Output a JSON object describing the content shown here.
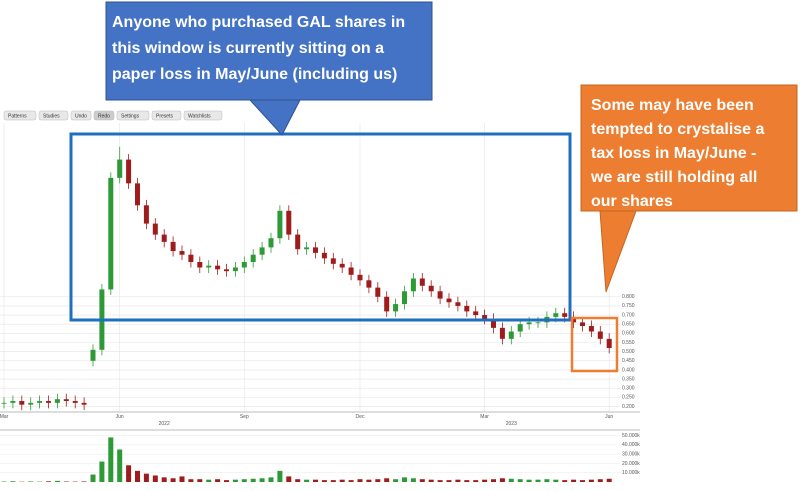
{
  "chart_data": {
    "type": "candlestick",
    "toolbar": [
      "Patterns",
      "Studies",
      "Undo",
      "Redo",
      "Settings",
      "Presets",
      "Watchlists"
    ],
    "annotations": [
      {
        "lines": [
          "Anyone who purchased GAL shares in",
          "this window is currently sitting on a",
          "paper loss in May/June (including us)"
        ],
        "color": "#4472c4"
      },
      {
        "lines": [
          "Some may have been",
          "tempted to crystalise a",
          "tax loss in May/June -",
          "we are still holding  all",
          "our shares"
        ],
        "color": "#ed7d31"
      }
    ],
    "categories": [
      "Mar",
      null,
      null,
      null,
      null,
      null,
      null,
      null,
      null,
      null,
      null,
      null,
      null,
      "Jun",
      null,
      null,
      null,
      null,
      null,
      null,
      null,
      null,
      null,
      null,
      null,
      null,
      null,
      "Sep",
      null,
      null,
      null,
      null,
      null,
      null,
      null,
      null,
      null,
      null,
      null,
      null,
      "Dec",
      null,
      null,
      null,
      null,
      null,
      null,
      null,
      null,
      null,
      null,
      null,
      null,
      null,
      "Mar",
      null,
      null,
      null,
      null,
      null,
      null,
      null,
      null,
      null,
      null,
      null,
      null,
      null,
      "Jun"
    ],
    "year_categories": [
      null,
      null,
      null,
      null,
      null,
      null,
      null,
      null,
      null,
      null,
      null,
      null,
      null,
      null,
      null,
      null,
      null,
      null,
      "2022",
      null,
      null,
      null,
      null,
      null,
      null,
      null,
      null,
      null,
      null,
      null,
      null,
      null,
      null,
      null,
      null,
      null,
      null,
      null,
      null,
      null,
      null,
      null,
      null,
      null,
      null,
      null,
      null,
      null,
      null,
      null,
      null,
      null,
      null,
      null,
      null,
      null,
      null,
      "2023",
      null,
      null,
      null,
      null,
      null,
      null,
      null,
      null,
      null,
      null,
      null
    ],
    "open": [
      0.22,
      0.22,
      0.23,
      0.21,
      0.22,
      0.23,
      0.22,
      0.24,
      0.23,
      0.22,
      0.45,
      0.51,
      0.84,
      1.45,
      1.55,
      1.42,
      1.3,
      1.2,
      1.14,
      1.1,
      1.05,
      1.03,
      0.99,
      0.96,
      0.97,
      0.95,
      0.94,
      0.96,
      0.99,
      1.03,
      1.07,
      1.12,
      1.27,
      1.14,
      1.06,
      1.07,
      1.04,
      1.01,
      0.98,
      0.96,
      0.92,
      0.89,
      0.85,
      0.8,
      0.72,
      0.76,
      0.83,
      0.9,
      0.86,
      0.83,
      0.79,
      0.77,
      0.75,
      0.72,
      0.7,
      0.68,
      0.63,
      0.57,
      0.61,
      0.65,
      0.66,
      0.66,
      0.69,
      0.71,
      0.69,
      0.66,
      0.64,
      0.61,
      0.57
    ],
    "high": [
      0.25,
      0.26,
      0.26,
      0.25,
      0.26,
      0.26,
      0.27,
      0.27,
      0.26,
      0.25,
      0.54,
      0.87,
      1.48,
      1.62,
      1.58,
      1.45,
      1.33,
      1.23,
      1.17,
      1.13,
      1.08,
      1.06,
      1.02,
      1.0,
      1.0,
      0.98,
      0.99,
      1.02,
      1.06,
      1.1,
      1.15,
      1.3,
      1.3,
      1.17,
      1.1,
      1.1,
      1.07,
      1.04,
      1.01,
      0.99,
      0.95,
      0.92,
      0.88,
      0.83,
      0.79,
      0.86,
      0.93,
      0.93,
      0.89,
      0.86,
      0.82,
      0.8,
      0.78,
      0.75,
      0.73,
      0.71,
      0.66,
      0.64,
      0.68,
      0.69,
      0.69,
      0.72,
      0.74,
      0.74,
      0.72,
      0.69,
      0.67,
      0.64,
      0.6
    ],
    "low": [
      0.19,
      0.19,
      0.18,
      0.18,
      0.19,
      0.19,
      0.19,
      0.2,
      0.19,
      0.18,
      0.42,
      0.48,
      0.81,
      1.42,
      1.39,
      1.27,
      1.17,
      1.11,
      1.07,
      1.02,
      1.0,
      0.96,
      0.93,
      0.93,
      0.92,
      0.91,
      0.91,
      0.93,
      0.96,
      1.0,
      1.04,
      1.09,
      1.11,
      1.03,
      1.03,
      1.01,
      0.98,
      0.95,
      0.93,
      0.89,
      0.86,
      0.82,
      0.77,
      0.69,
      0.69,
      0.73,
      0.8,
      0.83,
      0.8,
      0.76,
      0.74,
      0.72,
      0.69,
      0.67,
      0.65,
      0.6,
      0.54,
      0.54,
      0.58,
      0.62,
      0.63,
      0.63,
      0.66,
      0.66,
      0.63,
      0.61,
      0.58,
      0.54,
      0.49
    ],
    "close": [
      0.22,
      0.23,
      0.21,
      0.22,
      0.23,
      0.22,
      0.24,
      0.23,
      0.22,
      0.21,
      0.51,
      0.84,
      1.45,
      1.55,
      1.42,
      1.3,
      1.2,
      1.14,
      1.1,
      1.05,
      1.03,
      0.99,
      0.96,
      0.97,
      0.95,
      0.94,
      0.96,
      0.99,
      1.03,
      1.07,
      1.12,
      1.27,
      1.14,
      1.06,
      1.07,
      1.04,
      1.01,
      0.98,
      0.96,
      0.92,
      0.89,
      0.85,
      0.8,
      0.72,
      0.76,
      0.83,
      0.9,
      0.86,
      0.83,
      0.79,
      0.77,
      0.75,
      0.72,
      0.7,
      0.68,
      0.63,
      0.57,
      0.61,
      0.65,
      0.66,
      0.66,
      0.69,
      0.71,
      0.69,
      0.66,
      0.64,
      0.61,
      0.57,
      0.52
    ],
    "volume": [
      500,
      800,
      300,
      600,
      400,
      700,
      1200,
      500,
      400,
      600,
      8000,
      22000,
      48000,
      35000,
      18000,
      12000,
      9000,
      7000,
      5000,
      4000,
      6000,
      3000,
      3000,
      2500,
      3000,
      2000,
      2500,
      3000,
      3500,
      4000,
      5000,
      12000,
      6000,
      3000,
      2500,
      2500,
      2000,
      2000,
      2500,
      2000,
      3000,
      2500,
      3000,
      4000,
      3000,
      5000,
      4000,
      3000,
      2500,
      2000,
      2000,
      2500,
      2000,
      2000,
      2500,
      3000,
      4000,
      3500,
      3000,
      2500,
      2500,
      3000,
      2500,
      2000,
      2500,
      2000,
      2500,
      3000,
      3500
    ],
    "up_color": "#2e9a35",
    "down_color": "#9e1c1c",
    "ylim": [
      0.17,
      1.75
    ],
    "yticks": [
      {
        "value": 0.2,
        "label": "0.200"
      },
      {
        "value": 0.25,
        "label": "0.250"
      },
      {
        "value": 0.3,
        "label": "0.300"
      },
      {
        "value": 0.35,
        "label": "0.350"
      },
      {
        "value": 0.4,
        "label": "0.400"
      },
      {
        "value": 0.45,
        "label": "0.450"
      },
      {
        "value": 0.5,
        "label": "0.500"
      },
      {
        "value": 0.55,
        "label": "0.550"
      },
      {
        "value": 0.6,
        "label": "0.600"
      },
      {
        "value": 0.65,
        "label": "0.650"
      },
      {
        "value": 0.7,
        "label": "0.700"
      },
      {
        "value": 0.75,
        "label": "0.750"
      },
      {
        "value": 0.8,
        "label": "0.800"
      }
    ],
    "volume_ylim": [
      0,
      56000
    ],
    "volume_ticks": [
      {
        "value": 10000,
        "label": "10.000k"
      },
      {
        "value": 20000,
        "label": "20.000k"
      },
      {
        "value": 30000,
        "label": "30.000k"
      },
      {
        "value": 40000,
        "label": "40.000k"
      },
      {
        "value": 50000,
        "label": "50.000k"
      }
    ],
    "grid": true
  }
}
